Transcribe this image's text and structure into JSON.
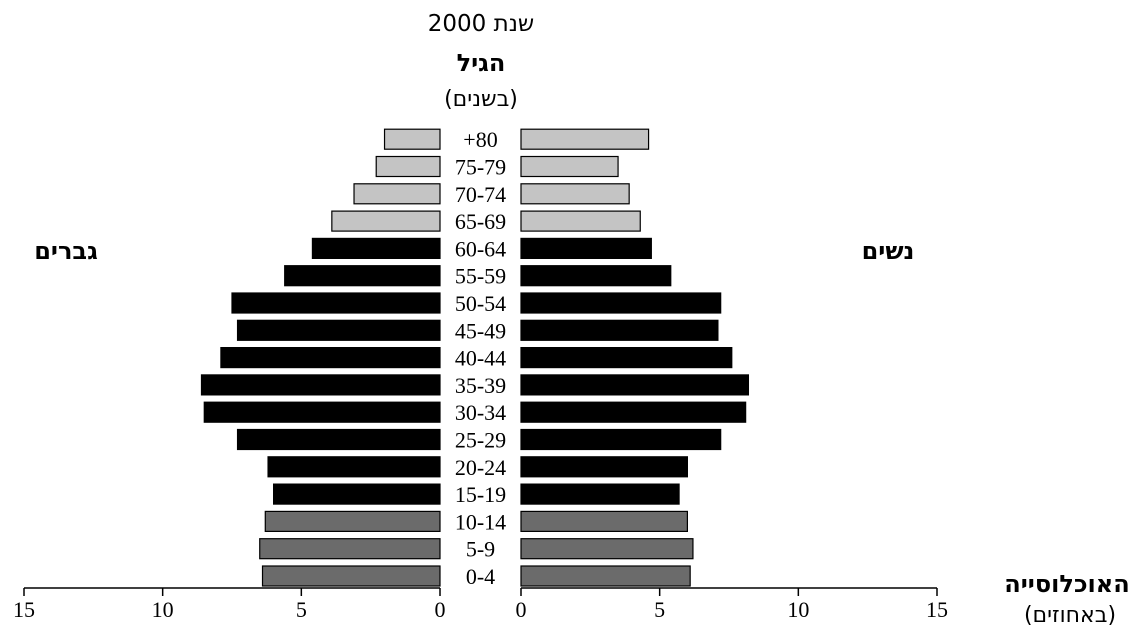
{
  "chart_data": {
    "type": "bar",
    "orientation": "horizontal",
    "layout": "population-pyramid",
    "title": "שנת 2000",
    "age_axis_title": "הגיל",
    "age_axis_unit": "(בשנים)",
    "left_label": "גברים",
    "right_label": "נשים",
    "x_axis_title": "האוכלוסייה",
    "x_axis_unit": "(באחוזים)",
    "xlim": [
      0,
      15
    ],
    "x_ticks": [
      0,
      5,
      10,
      15
    ],
    "x_tick_labels": [
      "0",
      "5",
      "10",
      "15"
    ],
    "categories": [
      "0-4",
      "5-9",
      "10-14",
      "15-19",
      "20-24",
      "25-29",
      "30-34",
      "35-39",
      "40-44",
      "45-49",
      "50-54",
      "55-59",
      "60-64",
      "65-69",
      "70-74",
      "75-79",
      "80+"
    ],
    "age_labels": [
      "0-4",
      "5-9",
      "10-14",
      "15-19",
      "20-24",
      "25-29",
      "30-34",
      "35-39",
      "40-44",
      "45-49",
      "50-54",
      "55-59",
      "60-64",
      "65-69",
      "70-74",
      "75-79",
      "+80"
    ],
    "series": [
      {
        "name": "גברים",
        "side": "left",
        "values": [
          6.4,
          6.5,
          6.3,
          6.0,
          6.2,
          7.3,
          8.5,
          8.6,
          7.9,
          7.3,
          7.5,
          5.6,
          4.6,
          3.9,
          3.1,
          2.3,
          2.0
        ]
      },
      {
        "name": "נשים",
        "side": "right",
        "values": [
          6.1,
          6.2,
          6.0,
          5.7,
          6.0,
          7.2,
          8.1,
          8.2,
          7.6,
          7.1,
          7.2,
          5.4,
          4.7,
          4.3,
          3.9,
          3.5,
          4.6
        ]
      }
    ],
    "group_colors": [
      "#6b6b6b",
      "#000000",
      "#c4c4c4"
    ],
    "group_of_category": [
      0,
      0,
      0,
      1,
      1,
      1,
      1,
      1,
      1,
      1,
      1,
      1,
      1,
      2,
      2,
      2,
      2
    ]
  }
}
